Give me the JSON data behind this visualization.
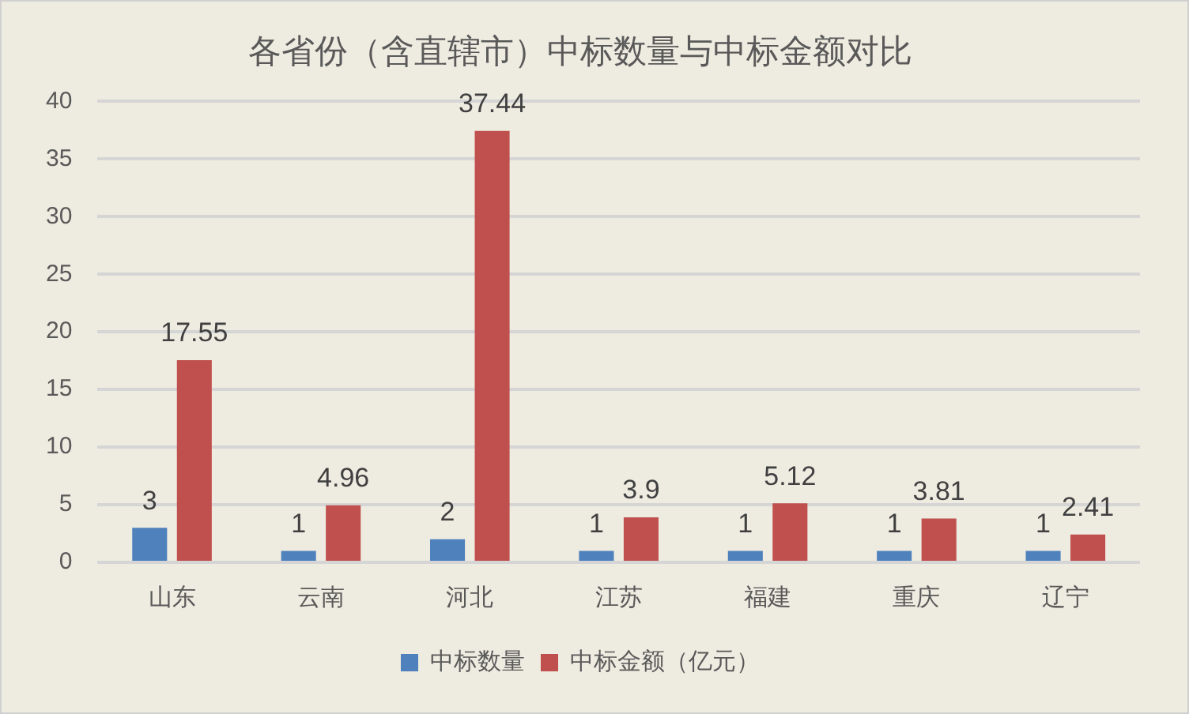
{
  "chart_data": {
    "type": "bar",
    "title": "各省份（含直辖市）中标数量与中标金额对比",
    "categories": [
      "山东",
      "云南",
      "河北",
      "江苏",
      "福建",
      "重庆",
      "辽宁"
    ],
    "series": [
      {
        "name": "中标数量",
        "color": "#4f81bd",
        "values": [
          3,
          1,
          2,
          1,
          1,
          1,
          1
        ]
      },
      {
        "name": "中标金额（亿元）",
        "color": "#c0504d",
        "values": [
          17.55,
          4.96,
          37.44,
          3.9,
          5.12,
          3.81,
          2.41
        ]
      }
    ],
    "ylim": [
      0,
      40
    ],
    "yticks": [
      0,
      5,
      10,
      15,
      20,
      25,
      30,
      35,
      40
    ],
    "grid": "y",
    "legend": "bottom",
    "data_labels": true
  }
}
